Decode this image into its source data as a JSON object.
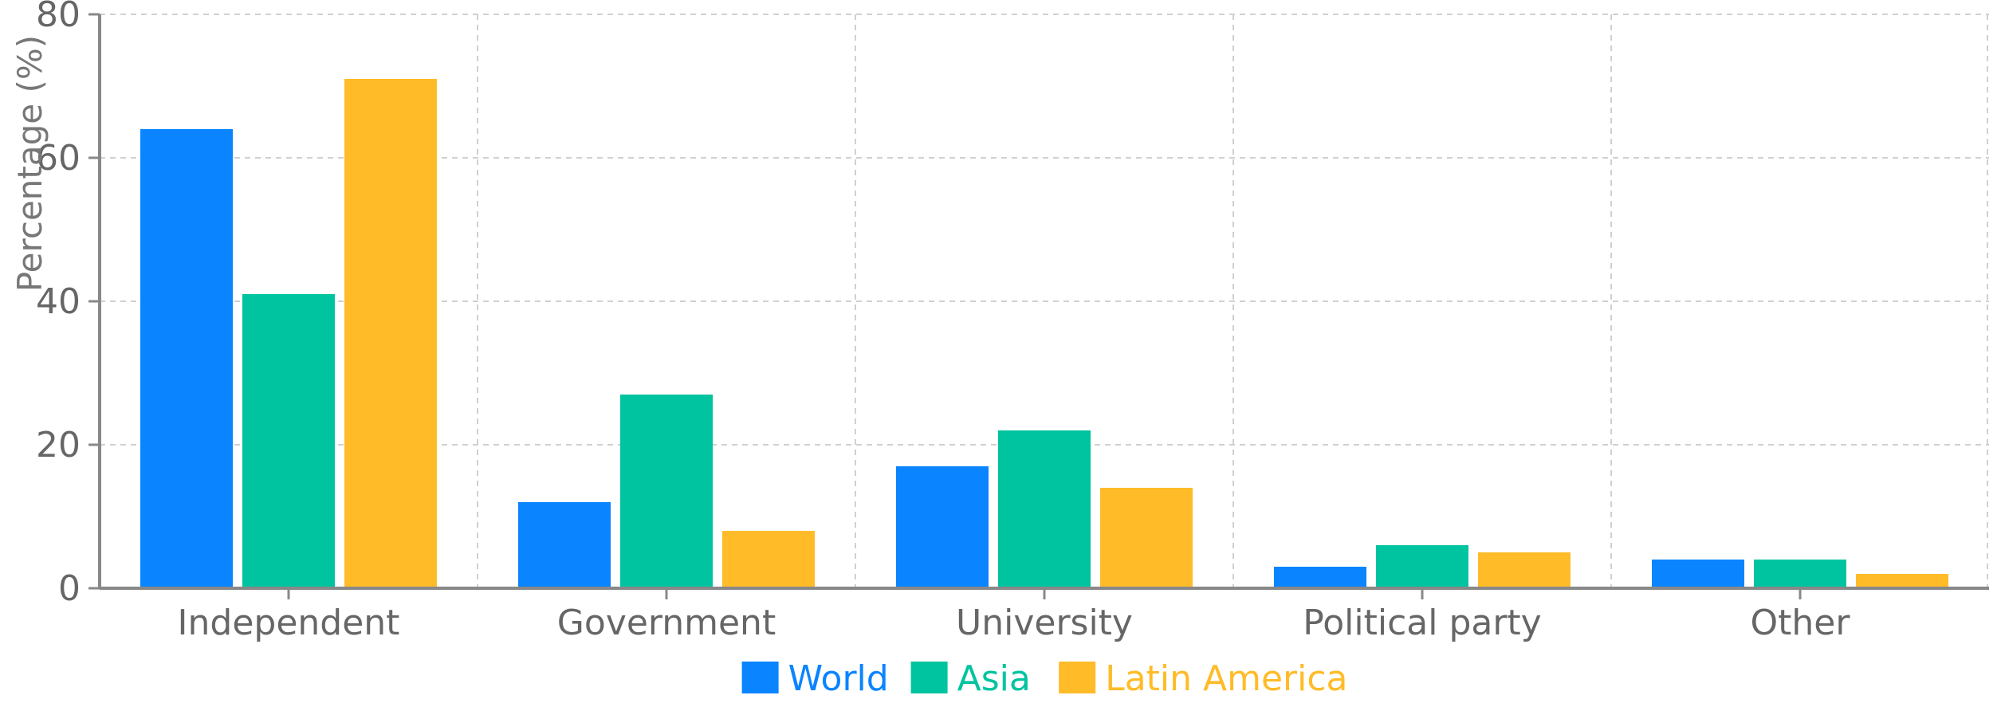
{
  "chart_data": {
    "type": "bar",
    "categories": [
      "Independent",
      "Government",
      "University",
      "Political party",
      "Other"
    ],
    "series": [
      {
        "name": "World",
        "color": "#0a84ff",
        "values": [
          64,
          12,
          17,
          3,
          4
        ]
      },
      {
        "name": "Asia",
        "color": "#00c49f",
        "values": [
          41,
          27,
          22,
          6,
          4
        ]
      },
      {
        "name": "Latin America",
        "color": "#ffbb28",
        "values": [
          71,
          8,
          14,
          5,
          2
        ]
      }
    ],
    "title": "",
    "xlabel": "",
    "ylabel": "Percentage (%)",
    "ylim": [
      0,
      80
    ],
    "yticks": [
      0,
      20,
      40,
      60,
      80
    ],
    "grid": true,
    "legend_position": "bottom-center"
  }
}
